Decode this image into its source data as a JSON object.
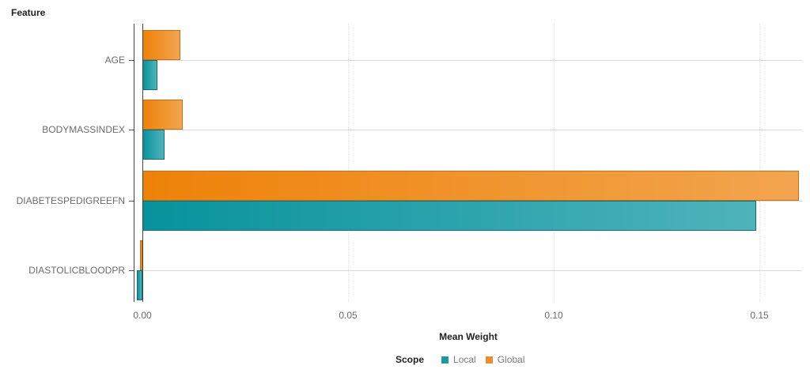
{
  "chart_data": {
    "type": "bar",
    "orientation": "horizontal",
    "title": "",
    "ylabel": "Feature",
    "xlabel": "Mean Weight",
    "categories": [
      "AGE",
      "BODYMASSINDEX",
      "DIABETESPEDIGREEFN",
      "DIASTOLICBLOODPR"
    ],
    "series": [
      {
        "name": "Global",
        "color": "#ee8208",
        "values": [
          0.0092,
          0.0098,
          0.1596,
          -0.0006
        ]
      },
      {
        "name": "Local",
        "color": "#07939c",
        "values": [
          0.0037,
          0.0053,
          0.1493,
          -0.0014
        ]
      }
    ],
    "xlim": [
      -0.002,
      0.16
    ],
    "xticks": [
      "0.00",
      "0.05",
      "0.10",
      "0.15"
    ],
    "xtick_values": [
      0,
      0.05,
      0.1,
      0.15
    ],
    "grid": {
      "x": true,
      "y": true
    },
    "legend": {
      "title": "Scope",
      "position": "bottom",
      "entries": [
        "Local",
        "Global"
      ]
    }
  },
  "labels": {
    "y_title": "Feature",
    "x_title": "Mean Weight",
    "legend_title": "Scope",
    "legend_local": "Local",
    "legend_global": "Global",
    "cat0": "AGE",
    "cat1": "BODYMASSINDEX",
    "cat2": "DIABETESPEDIGREEFN",
    "cat3": "DIASTOLICBLOODPR",
    "tick0": "0.00",
    "tick1": "0.05",
    "tick2": "0.10",
    "tick3": "0.15"
  },
  "colors": {
    "global": "#ee8208",
    "local": "#07939c"
  }
}
